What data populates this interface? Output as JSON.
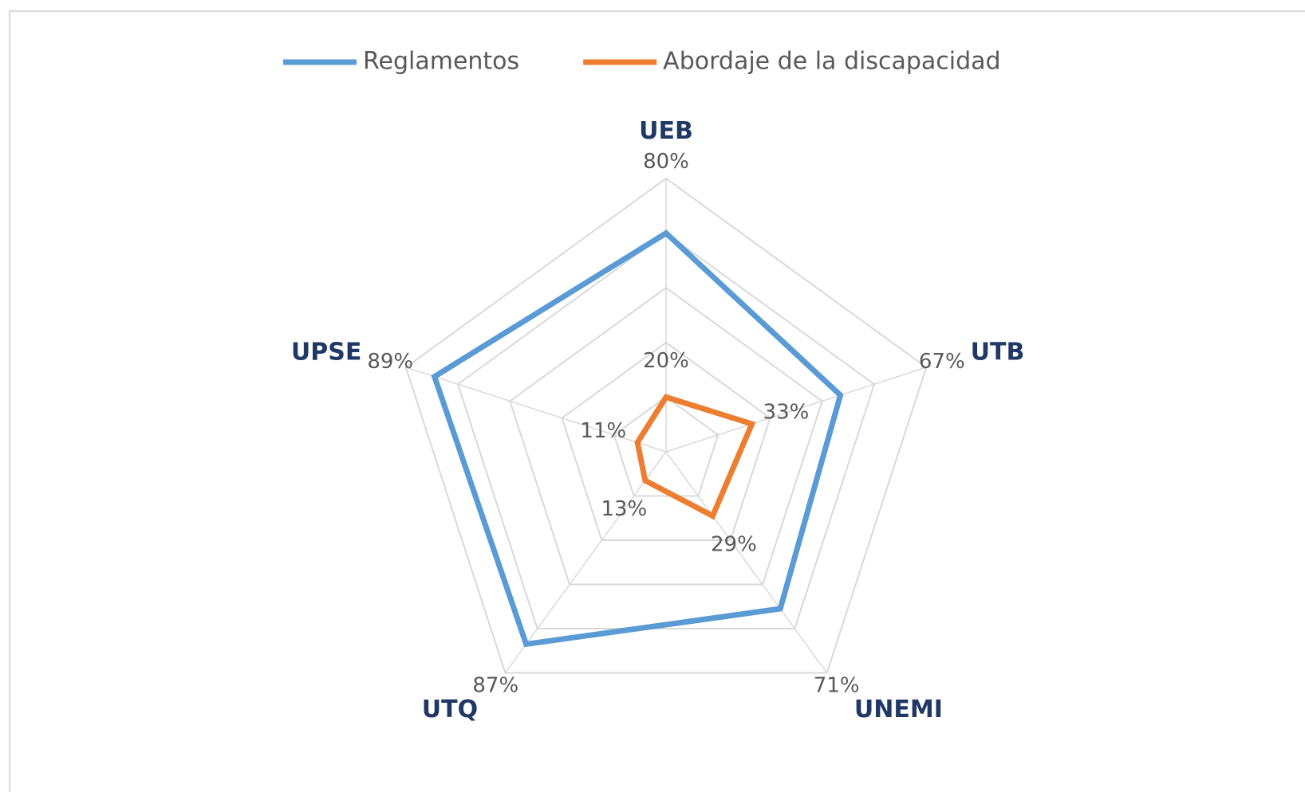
{
  "chart_data": {
    "type": "radar",
    "categories": [
      "UEB",
      "UTB",
      "UNEMI",
      "UTQ",
      "UPSE"
    ],
    "series": [
      {
        "name": "Reglamentos",
        "color": "#5b9bd5",
        "values": [
          80,
          67,
          71,
          87,
          89
        ],
        "value_labels": [
          "80%",
          "67%",
          "71%",
          "87%",
          "89%"
        ]
      },
      {
        "name": "Abordaje de la discapacidad",
        "color": "#ed7d31",
        "values": [
          20,
          33,
          29,
          13,
          11
        ],
        "value_labels": [
          "20%",
          "33%",
          "29%",
          "13%",
          "11%"
        ]
      }
    ],
    "ylim": [
      0,
      100
    ],
    "yticks": [
      0,
      20,
      40,
      60,
      80,
      100
    ],
    "grid": true,
    "legend": "top"
  }
}
